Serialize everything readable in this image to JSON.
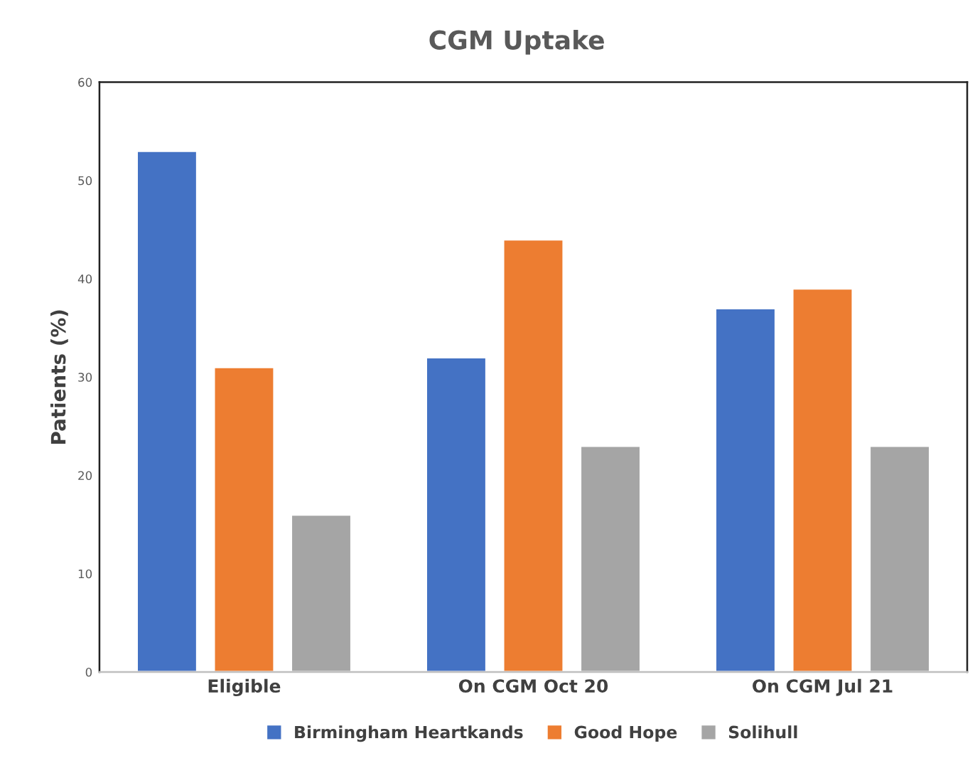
{
  "chart_data": {
    "type": "bar",
    "title": "CGM Uptake",
    "ylabel": "Patients (%)",
    "categories": [
      "Eligible",
      "On CGM Oct 20",
      "On CGM Jul 21"
    ],
    "series": [
      {
        "name": "Birmingham Heartkands",
        "color": "#4472c4",
        "values": [
          53,
          32,
          37
        ]
      },
      {
        "name": "Good Hope",
        "color": "#ed7d31",
        "values": [
          31,
          44,
          39
        ]
      },
      {
        "name": "Solihull",
        "color": "#a5a5a5",
        "values": [
          16,
          23,
          23
        ]
      }
    ],
    "ylim": [
      0,
      60
    ],
    "yticks": [
      0,
      10,
      20,
      30,
      40,
      50,
      60
    ],
    "grid": false,
    "legend": "bottom"
  }
}
